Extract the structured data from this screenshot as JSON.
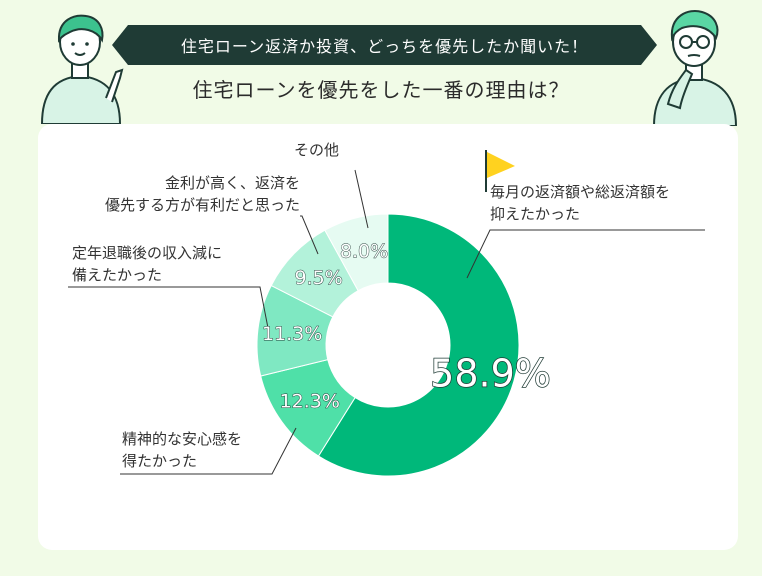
{
  "header": {
    "banner": "住宅ローン返済か投資、どっちを優先したか聞いた！",
    "question": "住宅ローンを優先をした一番の理由は？"
  },
  "chart_data": {
    "type": "pie",
    "variant": "donut",
    "categories": [
      "毎月の返済額や総返済額を抑えたかった",
      "精神的な安心感を得たかった",
      "定年退職後の収入減に備えたかった",
      "金利が高く、返済を優先する方が有利だと思った",
      "その他"
    ],
    "values": [
      58.9,
      12.3,
      11.3,
      9.5,
      8.0
    ],
    "value_labels": [
      "58.9%",
      "12.3%",
      "11.3%",
      "9.5%",
      "8.0%"
    ],
    "colors": [
      "#00b87a",
      "#4fe0a8",
      "#7fe8c2",
      "#b3f2da",
      "#e6fbf2"
    ],
    "legend": "none"
  },
  "labels": {
    "cat0_line1": "毎月の返済額や総返済額を",
    "cat0_line2": "抑えたかった",
    "cat1_line1": "精神的な安心感を",
    "cat1_line2": "得たかった",
    "cat2_line1": "定年退職後の収入減に",
    "cat2_line2": "備えたかった",
    "cat3_line1": "金利が高く、返済を",
    "cat3_line2": "優先する方が有利だと思った",
    "cat4_line1": "その他"
  },
  "illustration": {
    "left_person": "person-pointing-icon",
    "right_person": "person-thinking-icon",
    "flag": "flag-icon",
    "flag_color": "#ffd21f"
  }
}
